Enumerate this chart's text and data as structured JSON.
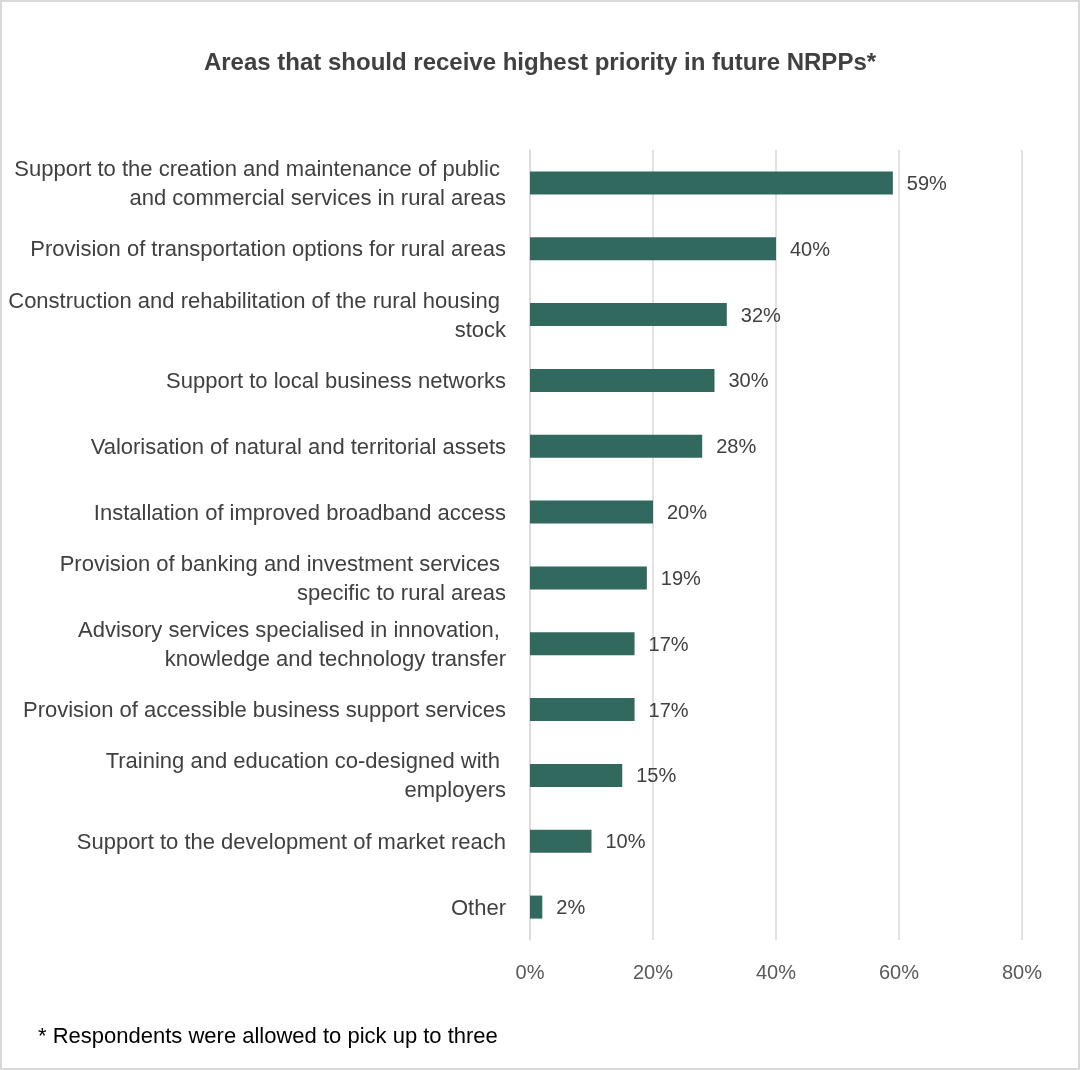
{
  "chart_data": {
    "type": "bar",
    "orientation": "horizontal",
    "title": "Areas that should receive highest priority in future NRPPs*",
    "categories": [
      "Support to the creation and maintenance of public and commercial services in rural areas",
      "Provision of transportation options for rural areas",
      "Construction and rehabilitation of the rural housing stock",
      "Support to local business networks",
      "Valorisation of natural and territorial assets",
      "Installation of improved broadband access",
      "Provision of banking and investment services specific to rural areas",
      "Advisory services specialised in innovation, knowledge and technology transfer",
      "Provision of accessible business support services",
      "Training and education co-designed with employers",
      "Support to the development of market reach",
      "Other"
    ],
    "values": [
      59,
      40,
      32,
      30,
      28,
      20,
      19,
      17,
      17,
      15,
      10,
      2
    ],
    "value_labels": [
      "59%",
      "40%",
      "32%",
      "30%",
      "28%",
      "20%",
      "19%",
      "17%",
      "17%",
      "15%",
      "10%",
      "2%"
    ],
    "color": "#31695e",
    "xlim": [
      0,
      80
    ],
    "xticks": [
      {
        "value": 0,
        "label": "0%"
      },
      {
        "value": 20,
        "label": "20%"
      },
      {
        "value": 40,
        "label": "40%"
      },
      {
        "value": 60,
        "label": "60%"
      },
      {
        "value": 80,
        "label": "80%"
      }
    ],
    "grid": "x",
    "annotations": [
      "* Respondents were allowed to pick up to three"
    ]
  }
}
